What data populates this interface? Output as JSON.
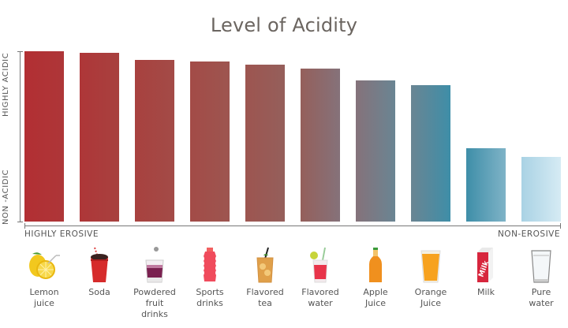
{
  "chart_data": {
    "type": "bar",
    "title": "Level of Acidity",
    "xlabel": "",
    "ylabel": "",
    "y_axis_labels": {
      "top": "HIGHLY ACIDIC",
      "bottom": "NON -ACIDIC"
    },
    "x_axis_labels": {
      "left": "HIGHLY EROSIVE",
      "right": "NON-EROSIVE"
    },
    "categories": [
      "Lemon juice",
      "Soda",
      "Powdered fruit drinks",
      "Sports drinks",
      "Flavored tea",
      "Flavored water",
      "Apple Juice",
      "Orange Juice",
      "Milk",
      "Pure water"
    ],
    "values": [
      100,
      99,
      95,
      94,
      92,
      90,
      83,
      80,
      43,
      38
    ],
    "ylim": [
      0,
      100
    ],
    "grid": false,
    "legend": "none",
    "colors": [
      "#b22f33",
      "#ae3638",
      "#a8413f",
      "#a34b47",
      "#9d5550",
      "#955f5b",
      "#85727a",
      "#6a8593",
      "#3e8ea8",
      "#c3e0ee"
    ]
  },
  "items": [
    {
      "label_lines": [
        "Lemon",
        "juice"
      ],
      "icon": "lemon-icon"
    },
    {
      "label_lines": [
        "Soda"
      ],
      "icon": "soda-cup-icon"
    },
    {
      "label_lines": [
        "Powdered",
        "fruit",
        "drinks"
      ],
      "icon": "powdered-drink-glass-icon"
    },
    {
      "label_lines": [
        "Sports",
        "drinks"
      ],
      "icon": "sports-drink-bottle-icon"
    },
    {
      "label_lines": [
        "Flavored",
        "tea"
      ],
      "icon": "iced-tea-glass-icon"
    },
    {
      "label_lines": [
        "Flavored",
        "water"
      ],
      "icon": "flavored-water-glass-icon"
    },
    {
      "label_lines": [
        "Apple",
        "Juice"
      ],
      "icon": "apple-juice-bottle-icon"
    },
    {
      "label_lines": [
        "Orange",
        "Juice"
      ],
      "icon": "orange-juice-glass-icon"
    },
    {
      "label_lines": [
        "Milk"
      ],
      "icon": "milk-carton-icon"
    },
    {
      "label_lines": [
        "Pure",
        "water"
      ],
      "icon": "water-glass-icon"
    }
  ]
}
